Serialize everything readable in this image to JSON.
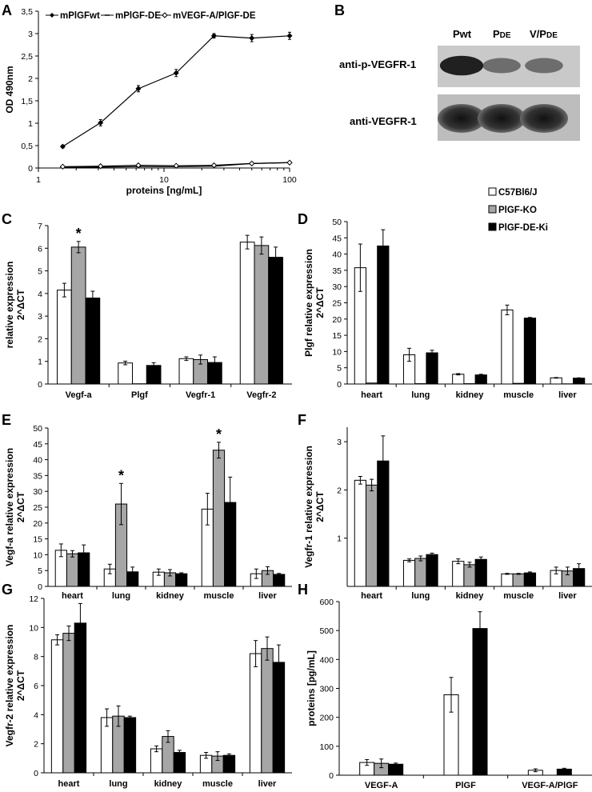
{
  "panel_letters": [
    "A",
    "B",
    "C",
    "D",
    "E",
    "F",
    "G",
    "H"
  ],
  "colors": {
    "C57Bl6/J": "#ffffff",
    "PlGF-KO": "#a6a6a6",
    "PlGF-DE-Ki": "#000000",
    "axis": "#000000"
  },
  "legend_shared": [
    "C57Bl6/J",
    "PlGF-KO",
    "PlGF-DE-Ki"
  ],
  "blot": {
    "lanes": [
      "Pwt",
      "PDE",
      "V/PDE"
    ],
    "lane_parts": [
      [
        "Pwt",
        ""
      ],
      [
        "P",
        "DE"
      ],
      [
        "V/P",
        "DE"
      ]
    ],
    "rows": [
      "anti-p-VEGFR-1",
      "anti-VEGFR-1"
    ],
    "p_band_intensity": [
      0.85,
      0.3,
      0.3
    ],
    "total_band_intensity": [
      1.0,
      1.0,
      1.0
    ]
  },
  "chart_data": [
    {
      "panel": "A",
      "type": "line",
      "xscale": "log",
      "xlabel": "proteins [ng/mL]",
      "ylabel": "OD 490nm",
      "xlim": [
        1,
        100
      ],
      "ylim": [
        0,
        3.5
      ],
      "xticks": [
        1,
        10,
        100
      ],
      "yticks": [
        0,
        0.5,
        1,
        1.5,
        2,
        2.5,
        3,
        3.5
      ],
      "ytick_labels": [
        "0",
        "0,5",
        "1",
        "1,5",
        "2",
        "2,5",
        "3",
        "3,5"
      ],
      "legend": [
        "mPlGFwt",
        "mPlGF-DE",
        "mVEGF-A/PlGF-DE"
      ],
      "x": [
        1.5625,
        3.125,
        6.25,
        12.5,
        25,
        50,
        100
      ],
      "series": [
        {
          "name": "mPlGFwt",
          "marker": "filled-diamond",
          "values": [
            0.48,
            1.01,
            1.77,
            2.12,
            2.95,
            2.9,
            2.95
          ],
          "errors": [
            0.03,
            0.07,
            0.07,
            0.08,
            0.05,
            0.08,
            0.08
          ]
        },
        {
          "name": "mPlGF-DE",
          "marker": "dash",
          "values": [
            0.02,
            0.02,
            0.03,
            0.03,
            0.04,
            0.1,
            0.12
          ],
          "errors": [
            0,
            0,
            0,
            0,
            0,
            0,
            0
          ]
        },
        {
          "name": "mVEGF-A/PlGF-DE",
          "marker": "open-diamond",
          "values": [
            0.03,
            0.04,
            0.06,
            0.05,
            0.06,
            0.1,
            0.12
          ],
          "errors": [
            0,
            0,
            0,
            0,
            0,
            0,
            0
          ]
        }
      ]
    },
    {
      "panel": "C",
      "type": "bar",
      "ylabel": "relative expression\n2^ΔCT",
      "ylim": [
        0,
        7
      ],
      "yticks": [
        0,
        1,
        2,
        3,
        4,
        5,
        6,
        7
      ],
      "categories": [
        "Vegf-a",
        "Plgf",
        "Vegfr-1",
        "Vegfr-2"
      ],
      "series": [
        {
          "name": "C57Bl6/J",
          "values": [
            4.15,
            0.93,
            1.12,
            6.27
          ],
          "errors": [
            0.3,
            0.08,
            0.08,
            0.3
          ]
        },
        {
          "name": "PlGF-KO",
          "values": [
            6.05,
            0.01,
            1.08,
            6.12
          ],
          "errors": [
            0.25,
            0,
            0.2,
            0.38
          ]
        },
        {
          "name": "PlGF-DE-Ki",
          "values": [
            3.8,
            0.82,
            0.95,
            5.6
          ],
          "errors": [
            0.3,
            0.12,
            0.25,
            0.45
          ]
        }
      ],
      "significance": [
        {
          "category": "Vegf-a",
          "series": "PlGF-KO",
          "label": "*"
        }
      ]
    },
    {
      "panel": "D",
      "type": "bar",
      "ylabel": "Plgf relative expression\n2^ΔCT",
      "ylim": [
        0,
        50
      ],
      "yticks": [
        0,
        5,
        10,
        15,
        20,
        25,
        30,
        35,
        40,
        45,
        50
      ],
      "categories": [
        "heart",
        "lung",
        "kidney",
        "muscle",
        "liver"
      ],
      "series": [
        {
          "name": "C57Bl6/J",
          "values": [
            35.8,
            9.0,
            3.0,
            22.8,
            1.9
          ],
          "errors": [
            7.3,
            2.0,
            0.2,
            1.5,
            0.1
          ]
        },
        {
          "name": "PlGF-KO",
          "values": [
            0.3,
            0.1,
            0.1,
            0.2,
            0.05
          ],
          "errors": [
            0,
            0,
            0,
            0,
            0
          ]
        },
        {
          "name": "PlGF-DE-Ki",
          "values": [
            42.5,
            9.6,
            2.8,
            20.3,
            1.8
          ],
          "errors": [
            5.0,
            0.8,
            0.2,
            0.2,
            0.1
          ]
        }
      ]
    },
    {
      "panel": "E",
      "type": "bar",
      "ylabel": "Vegf-a relative expression\n2^ΔCT",
      "ylim": [
        0,
        50
      ],
      "yticks": [
        0,
        5,
        10,
        15,
        20,
        25,
        30,
        35,
        40,
        45,
        50
      ],
      "categories": [
        "heart",
        "lung",
        "kidney",
        "muscle",
        "liver"
      ],
      "series": [
        {
          "name": "C57Bl6/J",
          "values": [
            11.4,
            5.5,
            4.5,
            24.4,
            4.0
          ],
          "errors": [
            2.0,
            1.5,
            1.0,
            5.0,
            1.5
          ]
        },
        {
          "name": "PlGF-KO",
          "values": [
            10.3,
            26.0,
            4.3,
            43.0,
            5.0
          ],
          "errors": [
            1.0,
            6.5,
            1.0,
            2.5,
            1.2
          ]
        },
        {
          "name": "PlGF-DE-Ki",
          "values": [
            10.6,
            4.6,
            4.0,
            26.5,
            3.8
          ],
          "errors": [
            2.5,
            1.5,
            0.3,
            8.0,
            0.3
          ]
        }
      ],
      "significance": [
        {
          "category": "lung",
          "series": "PlGF-KO",
          "label": "*"
        },
        {
          "category": "muscle",
          "series": "PlGF-KO",
          "label": "*"
        }
      ]
    },
    {
      "panel": "F",
      "type": "bar",
      "ylabel": "Vegfr-1 relative expression\n2^ΔCT",
      "ylim": [
        0,
        3.3
      ],
      "yticks": [
        1,
        2,
        3
      ],
      "categories": [
        "heart",
        "lung",
        "kidney",
        "muscle",
        "liver"
      ],
      "series": [
        {
          "name": "C57Bl6/J",
          "values": [
            2.2,
            0.54,
            0.52,
            0.26,
            0.33
          ],
          "errors": [
            0.08,
            0.03,
            0.05,
            0.01,
            0.07
          ]
        },
        {
          "name": "PlGF-KO",
          "values": [
            2.1,
            0.58,
            0.45,
            0.26,
            0.32
          ],
          "errors": [
            0.12,
            0.05,
            0.05,
            0.01,
            0.08
          ]
        },
        {
          "name": "PlGF-DE-Ki",
          "values": [
            2.6,
            0.66,
            0.56,
            0.28,
            0.37
          ],
          "errors": [
            0.52,
            0.03,
            0.05,
            0.02,
            0.1
          ]
        }
      ]
    },
    {
      "panel": "G",
      "type": "bar",
      "ylabel": "Vegfr-2 relative expression\n2^ΔCT",
      "ylim": [
        0,
        12
      ],
      "yticks": [
        0,
        2,
        4,
        6,
        8,
        10,
        12
      ],
      "categories": [
        "heart",
        "lung",
        "kidney",
        "muscle",
        "liver"
      ],
      "series": [
        {
          "name": "C57Bl6/J",
          "values": [
            9.15,
            3.8,
            1.65,
            1.2,
            8.2
          ],
          "errors": [
            0.35,
            0.6,
            0.2,
            0.2,
            0.9
          ]
        },
        {
          "name": "PlGF-KO",
          "values": [
            9.6,
            3.9,
            2.5,
            1.15,
            8.55
          ],
          "errors": [
            0.5,
            0.7,
            0.4,
            0.3,
            0.8
          ]
        },
        {
          "name": "PlGF-DE-Ki",
          "values": [
            10.3,
            3.8,
            1.4,
            1.2,
            7.6
          ],
          "errors": [
            1.35,
            0.1,
            0.15,
            0.1,
            1.2
          ]
        }
      ]
    },
    {
      "panel": "H",
      "type": "bar",
      "ylabel": "proteins [pg/mL]",
      "ylim": [
        0,
        600
      ],
      "yticks": [
        0,
        100,
        200,
        300,
        400,
        500,
        600
      ],
      "categories": [
        "VEGF-A",
        "PlGF",
        "VEGF-A/PlGF"
      ],
      "series": [
        {
          "name": "C57Bl6/J",
          "values": [
            44,
            278,
            17
          ],
          "errors": [
            10,
            60,
            5
          ]
        },
        {
          "name": "PlGF-KO",
          "values": [
            41,
            0,
            0
          ],
          "errors": [
            15,
            0,
            0
          ]
        },
        {
          "name": "PlGF-DE-Ki",
          "values": [
            38,
            507,
            21
          ],
          "errors": [
            4,
            58,
            3
          ]
        }
      ]
    }
  ]
}
